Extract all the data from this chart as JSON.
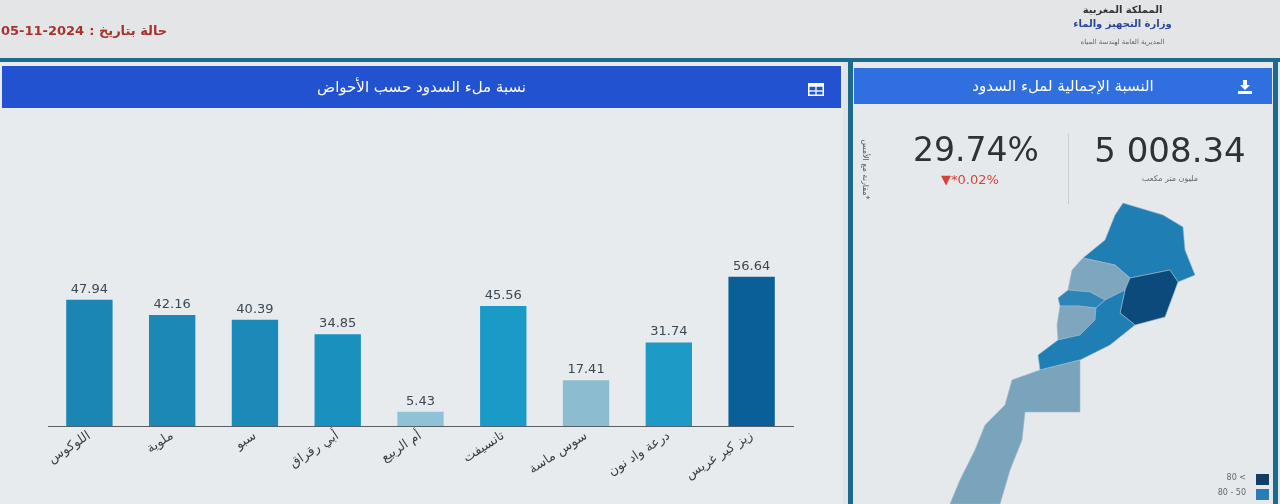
{
  "chart_data": [
    {
      "type": "bar",
      "title": "نسبة ملء السدود حسب الأحواض",
      "categories": [
        "اللوكوس",
        "ملوية",
        "سبو",
        "أبي رقراق",
        "أم الربيع",
        "تانسيفت",
        "سوس ماسة",
        "درعة واد نون",
        "زيز كير غريس"
      ],
      "values": [
        47.94,
        42.16,
        40.39,
        34.85,
        5.43,
        45.56,
        17.41,
        31.74,
        56.64
      ],
      "colors": [
        "#1b86b3",
        "#1c88b5",
        "#1b8ab8",
        "#1990bd",
        "#8fc2d6",
        "#1a9ac6",
        "#8bbccf",
        "#1d9ac6",
        "#0b5f98"
      ],
      "data_labels": true,
      "tick_labels": "x",
      "annotations": [
        "حالة بتاريخ :",
        "05-11-2024"
      ]
    },
    {
      "type": "other",
      "title": "النسبة الإجمالية لملء السدود",
      "annotations": [
        "29.74%",
        "▼*0.02%",
        "*مقارنة مع الأمس",
        "5 008.34",
        "مليون متر مكعب",
        "80 <",
        "80 - 50",
        "المملكة المغربية",
        "وزارة التجهيز والماء",
        "المديرية العامة لهندسة المياه"
      ]
    }
  ]
}
